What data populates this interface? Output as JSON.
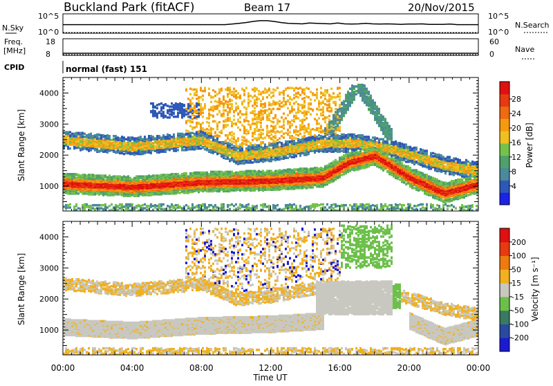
{
  "header": {
    "title": "Buckland Park (fitACF)",
    "beam": "Beam 17",
    "date": "20/Nov/2015"
  },
  "top_panels": {
    "nsky": {
      "label": "N.Sky",
      "left_ticks": [
        "10^5",
        "10^0"
      ],
      "right_label": "N.Search",
      "right_ticks": [
        "10^5",
        "10^0"
      ],
      "trace": [
        3,
        3,
        3,
        3,
        3,
        3,
        3,
        3,
        3,
        3,
        3,
        3,
        3,
        3,
        3,
        3,
        3,
        3,
        3,
        3,
        3,
        3,
        3,
        3,
        3.2,
        3.5,
        3.8,
        4.2,
        4.5,
        4.5,
        4.2,
        3.8,
        3.5,
        3.4,
        3.3,
        3.6,
        3.5,
        3.4,
        3.3,
        3.6,
        3.3,
        3.2,
        3.3,
        3.5,
        3.3,
        3.2,
        3.3,
        3.2,
        3.1,
        3.2,
        3.2,
        3.3,
        3.1,
        3.1,
        3.1,
        3.2,
        3,
        3,
        3,
        3
      ]
    },
    "freq": {
      "label": "Freq.",
      "unit": "[MHz]",
      "left_ticks": [
        "18",
        "8"
      ],
      "right_label": "Nave",
      "right_ticks": [
        "60",
        "0"
      ]
    },
    "cpid": {
      "label": "CPID",
      "value": "normal (fast) 151"
    }
  },
  "chart_data": [
    {
      "type": "heatmap",
      "name": "power",
      "ylabel": "Slant Range [km]",
      "yticks": [
        "1000",
        "2000",
        "3000",
        "4000"
      ],
      "ylim": [
        200,
        4500
      ],
      "xlim": [
        0,
        24
      ],
      "colorbar": {
        "label": "Power [dB]",
        "ticks": [
          "4",
          "8",
          "12",
          "16",
          "20",
          "24",
          "28"
        ],
        "colors": [
          "#1a23e6",
          "#2e58b8",
          "#4a8a9a",
          "#4fa06a",
          "#74c24a",
          "#f0c020",
          "#f59a10",
          "#ef6a10",
          "#e83a10",
          "#e01010"
        ]
      },
      "features": [
        {
          "desc": "strong band",
          "x": [
            0,
            4,
            8,
            12,
            15,
            16.5,
            18,
            20,
            22,
            24
          ],
          "y": [
            1100,
            1000,
            1150,
            1200,
            1300,
            1800,
            2000,
            1300,
            800,
            1100
          ]
        },
        {
          "desc": "upper band",
          "x": [
            0,
            4,
            8,
            10,
            12,
            15,
            17,
            19,
            22,
            24
          ],
          "y": [
            2500,
            2300,
            2500,
            2000,
            2100,
            2400,
            2400,
            2200,
            1700,
            1500
          ]
        }
      ]
    },
    {
      "type": "heatmap",
      "name": "velocity",
      "ylabel": "Slant Range [km]",
      "yticks": [
        "1000",
        "2000",
        "3000",
        "4000"
      ],
      "ylim": [
        200,
        4500
      ],
      "xlim": [
        0,
        24
      ],
      "colorbar": {
        "label": "Velocity [m s⁻¹]",
        "ticks": [
          "200",
          "100",
          "50",
          "15",
          "-15",
          "-50",
          "-100",
          "-200"
        ],
        "colors": [
          "#1c1ad0",
          "#2a4aa0",
          "#3a7a60",
          "#6cc04a",
          "#c8c8c0",
          "#f0b020",
          "#ef7a10",
          "#e83a10",
          "#e01010"
        ]
      }
    }
  ],
  "xaxis": {
    "label": "Time UT",
    "ticks": [
      "00:00",
      "04:00",
      "08:00",
      "12:00",
      "16:00",
      "20:00",
      "00:00"
    ]
  }
}
